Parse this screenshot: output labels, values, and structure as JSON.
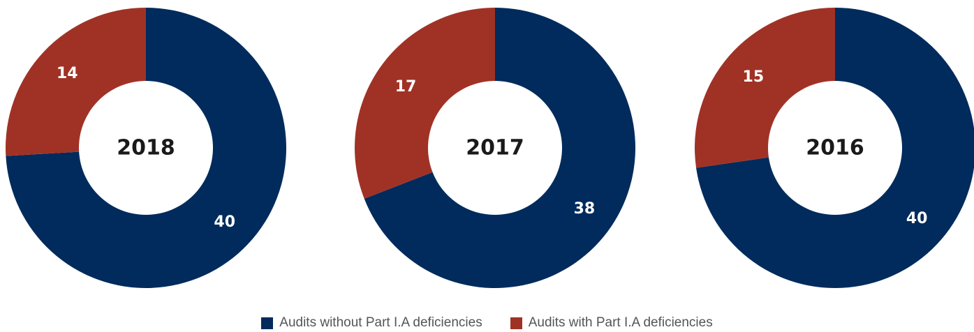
{
  "colors": {
    "without": "#002b5c",
    "with": "#a03225",
    "hole": "#ffffff"
  },
  "legend": {
    "without_label": "Audits without Part I.A deficiencies",
    "with_label": "Audits with Part I.A deficiencies"
  },
  "chart_data": [
    {
      "type": "pie",
      "center_label": "2018",
      "series": [
        {
          "name": "Audits without Part I.A deficiencies",
          "value": 40
        },
        {
          "name": "Audits with Part I.A deficiencies",
          "value": 14
        }
      ]
    },
    {
      "type": "pie",
      "center_label": "2017",
      "series": [
        {
          "name": "Audits without Part I.A deficiencies",
          "value": 38
        },
        {
          "name": "Audits with Part I.A deficiencies",
          "value": 17
        }
      ]
    },
    {
      "type": "pie",
      "center_label": "2016",
      "series": [
        {
          "name": "Audits without Part I.A deficiencies",
          "value": 40
        },
        {
          "name": "Audits with Part I.A deficiencies",
          "value": 15
        }
      ]
    }
  ]
}
